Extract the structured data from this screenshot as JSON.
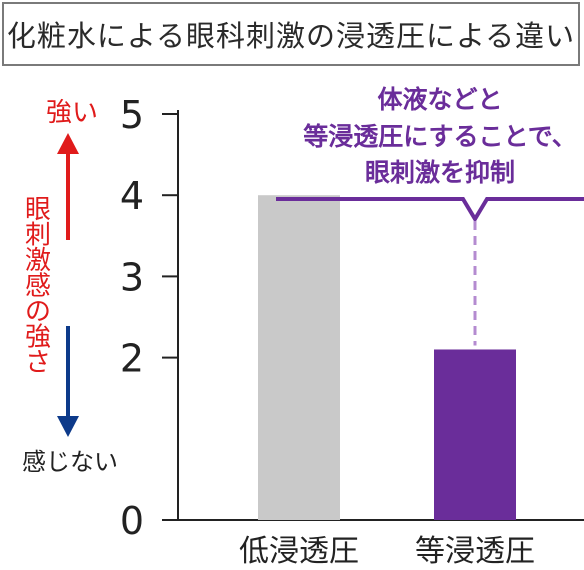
{
  "title": "化粧水による眼科刺激の浸透圧による違い",
  "y_axis": {
    "label": "眼刺激感の強さ",
    "top_label": "強い",
    "bottom_label": "感じない"
  },
  "annotation": {
    "lines": [
      "体液などと",
      "等浸透圧にすることで、",
      "眼刺激を抑制"
    ]
  },
  "colors": {
    "strong": "#e01b1b",
    "weak": "#0d3a8a",
    "accent": "#6a2d9a",
    "bar_low": "#c9c9c9",
    "bar_iso": "#6a2d9a",
    "dashed": "#b48bd0",
    "axis": "#222222"
  },
  "chart_data": {
    "type": "bar",
    "title": "化粧水による眼科刺激の浸透圧による違い",
    "categories": [
      "低浸透圧",
      "等浸透圧"
    ],
    "values": [
      4.0,
      2.1
    ],
    "ylabel": "眼刺激感の強さ",
    "ylim": [
      0,
      5
    ],
    "yticks": [
      0,
      2,
      3,
      4,
      5
    ],
    "xlabel": "",
    "grid": false,
    "legend": "none"
  }
}
